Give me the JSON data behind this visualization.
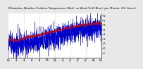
{
  "title": "Milwaukee Weather Outdoor Temperature (Red)  vs Wind Chill (Blue)  per Minute  (24 Hours)",
  "title_fontsize": 2.8,
  "bg_color": "#e8e8e8",
  "plot_bg_color": "#ffffff",
  "red_color": "#cc0000",
  "blue_color": "#0000cc",
  "grid_color": "#999999",
  "ylim": [
    -10,
    85
  ],
  "xlim": [
    0,
    1440
  ],
  "n_points": 1440,
  "blue_noise_scale": 12,
  "vgrid_positions": [
    240,
    480,
    720,
    960,
    1200
  ],
  "yticks": [
    0,
    10,
    20,
    30,
    40,
    50,
    60,
    70,
    80
  ],
  "xtick_positions": [
    0,
    120,
    240,
    360,
    480,
    600,
    720,
    840,
    960,
    1080,
    1200,
    1320,
    1440
  ],
  "xtick_labels": [
    "12a",
    "2a",
    "4a",
    "6a",
    "8a",
    "10a",
    "12p",
    "2p",
    "4p",
    "6p",
    "8p",
    "10p",
    "12a"
  ]
}
